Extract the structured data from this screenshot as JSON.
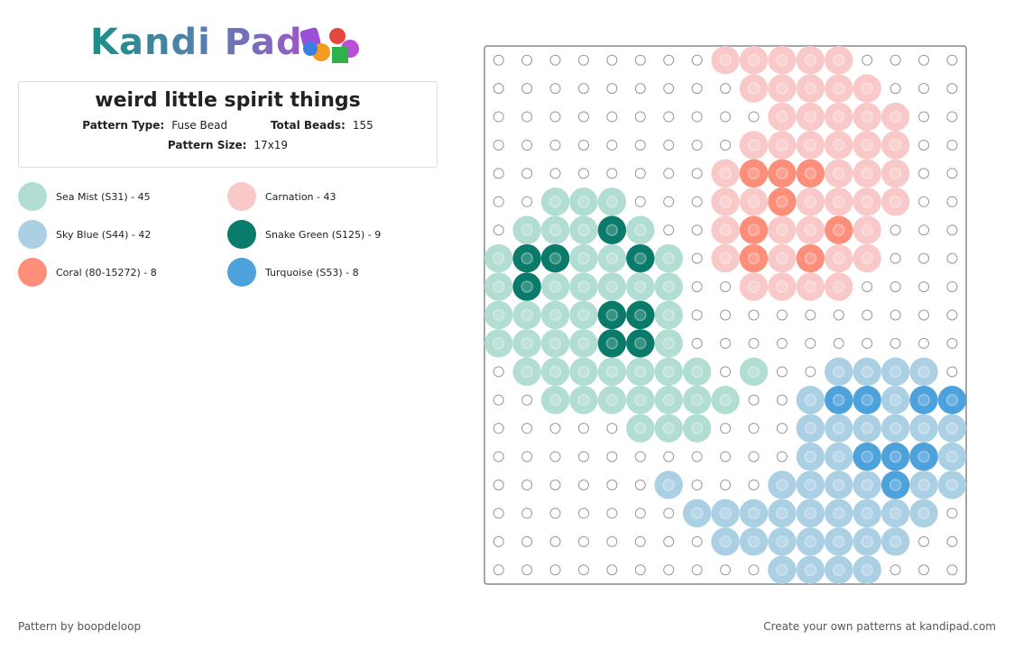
{
  "logo": "Kandi Pad",
  "header": {
    "title": "weird little spirit things",
    "pattern_type_label": "Pattern Type:",
    "pattern_type": "Fuse Bead",
    "total_beads_label": "Total Beads:",
    "total_beads": "155",
    "pattern_size_label": "Pattern Size:",
    "pattern_size": "17x19"
  },
  "legend": [
    {
      "label": "Sea Mist (S31) - 45",
      "color": "#b1ddd2"
    },
    {
      "label": "Carnation - 43",
      "color": "#f9c9c9"
    },
    {
      "label": "Sky Blue (S44) - 42",
      "color": "#abd0e4"
    },
    {
      "label": "Snake Green (S125) - 9",
      "color": "#0a7b6a"
    },
    {
      "label": "Coral (80-15272) - 8",
      "color": "#fd8e7a"
    },
    {
      "label": "Turquoise (S53) - 8",
      "color": "#4ea2dc"
    }
  ],
  "footer": {
    "credit": "Pattern by boopdeloop",
    "cta": "Create your own patterns at kandipad.com"
  }
}
